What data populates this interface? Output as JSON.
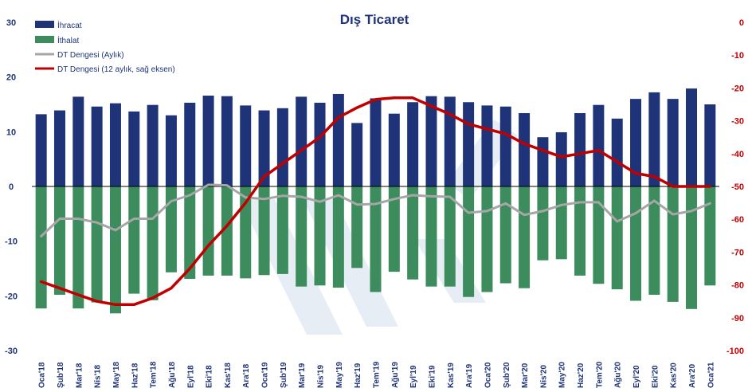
{
  "chart_data": {
    "type": "bar",
    "title": "Dış Ticaret",
    "categories": [
      "Oca'18",
      "Şub'18",
      "Mar'18",
      "Nis'18",
      "May'18",
      "Haz'18",
      "Tem'18",
      "Ağu'18",
      "Eyl'18",
      "Eki'18",
      "Kas'18",
      "Ara'18",
      "Oca'19",
      "Şub'19",
      "Mar'19",
      "Nis'19",
      "May'19",
      "Haz'19",
      "Tem'19",
      "Ağu'19",
      "Eyl'19",
      "Eki'19",
      "Kas'19",
      "Ara'19",
      "Oca'20",
      "Şub'20",
      "Mar'20",
      "Nis'20",
      "May'20",
      "Haz'20",
      "Tem'20",
      "Ağu'20",
      "Eyl'20",
      "Eki'20",
      "Kas'20",
      "Ara'20",
      "Oca'21"
    ],
    "left_axis": {
      "min": -30,
      "max": 30,
      "ticks": [
        "30",
        "20",
        "10",
        "0",
        "-10",
        "-20",
        "-30"
      ],
      "tick_values": [
        30,
        20,
        10,
        0,
        -10,
        -20,
        -30
      ]
    },
    "right_axis": {
      "min": -100,
      "max": 0,
      "ticks": [
        "0",
        "-10",
        "-20",
        "-30",
        "-40",
        "-50",
        "-60",
        "-70",
        "-80",
        "-90",
        "-100"
      ],
      "tick_values": [
        0,
        -10,
        -20,
        -30,
        -40,
        -50,
        -60,
        -70,
        -80,
        -90,
        -100
      ]
    },
    "series": [
      {
        "name": "İhracat",
        "kind": "bar",
        "axis": "left",
        "color": "#1f3478",
        "values": [
          13.2,
          13.9,
          16.4,
          14.6,
          15.2,
          13.7,
          14.9,
          13.0,
          15.3,
          16.6,
          16.5,
          14.8,
          13.9,
          14.3,
          16.4,
          15.3,
          16.9,
          11.6,
          16.1,
          13.3,
          15.4,
          16.5,
          16.4,
          15.4,
          14.8,
          14.6,
          13.4,
          9.0,
          9.9,
          13.4,
          14.9,
          12.4,
          16.0,
          17.2,
          16.0,
          17.9,
          15.0
        ]
      },
      {
        "name": "İthalat",
        "kind": "bar",
        "axis": "left",
        "color": "#3d8c5e",
        "values": [
          -22.3,
          -19.8,
          -22.3,
          -21.2,
          -23.2,
          -19.6,
          -20.8,
          -15.7,
          -16.9,
          -16.3,
          -16.3,
          -16.8,
          -16.2,
          -16.0,
          -18.3,
          -18.1,
          -18.5,
          -14.9,
          -19.3,
          -15.6,
          -17.0,
          -18.3,
          -18.3,
          -20.2,
          -19.3,
          -17.7,
          -18.6,
          -13.5,
          -13.3,
          -16.3,
          -17.8,
          -18.8,
          -20.9,
          -19.8,
          -21.1,
          -22.4,
          -18.1
        ]
      },
      {
        "name": "DT Dengesi (Aylık)",
        "kind": "line",
        "axis": "left",
        "color": "#a6a6a6",
        "values": [
          -9.1,
          -5.9,
          -5.9,
          -6.6,
          -8.0,
          -5.9,
          -5.9,
          -2.7,
          -1.6,
          0.3,
          0.2,
          -2.0,
          -2.3,
          -1.7,
          -1.9,
          -2.8,
          -1.6,
          -3.3,
          -3.2,
          -2.3,
          -1.6,
          -1.8,
          -1.9,
          -4.8,
          -4.5,
          -3.1,
          -5.2,
          -4.5,
          -3.4,
          -2.9,
          -2.9,
          -6.4,
          -4.9,
          -2.6,
          -5.1,
          -4.5,
          -3.1
        ]
      },
      {
        "name": "DT Dengesi (12 aylık, sağ eksen)",
        "kind": "line",
        "axis": "right",
        "color": "#c00000",
        "values": [
          -79,
          -81,
          -83,
          -85,
          -86,
          -86,
          -84,
          -81,
          -75,
          -68,
          -62,
          -55,
          -47,
          -43,
          -39,
          -35,
          -29,
          -26,
          -23.5,
          -23,
          -23,
          -25.5,
          -28,
          -31,
          -32.5,
          -34,
          -37,
          -39,
          -41,
          -40,
          -39,
          -42.5,
          -46,
          -47,
          -50,
          -50,
          -50
        ]
      }
    ],
    "legend_position": "top-left",
    "grid": false
  }
}
